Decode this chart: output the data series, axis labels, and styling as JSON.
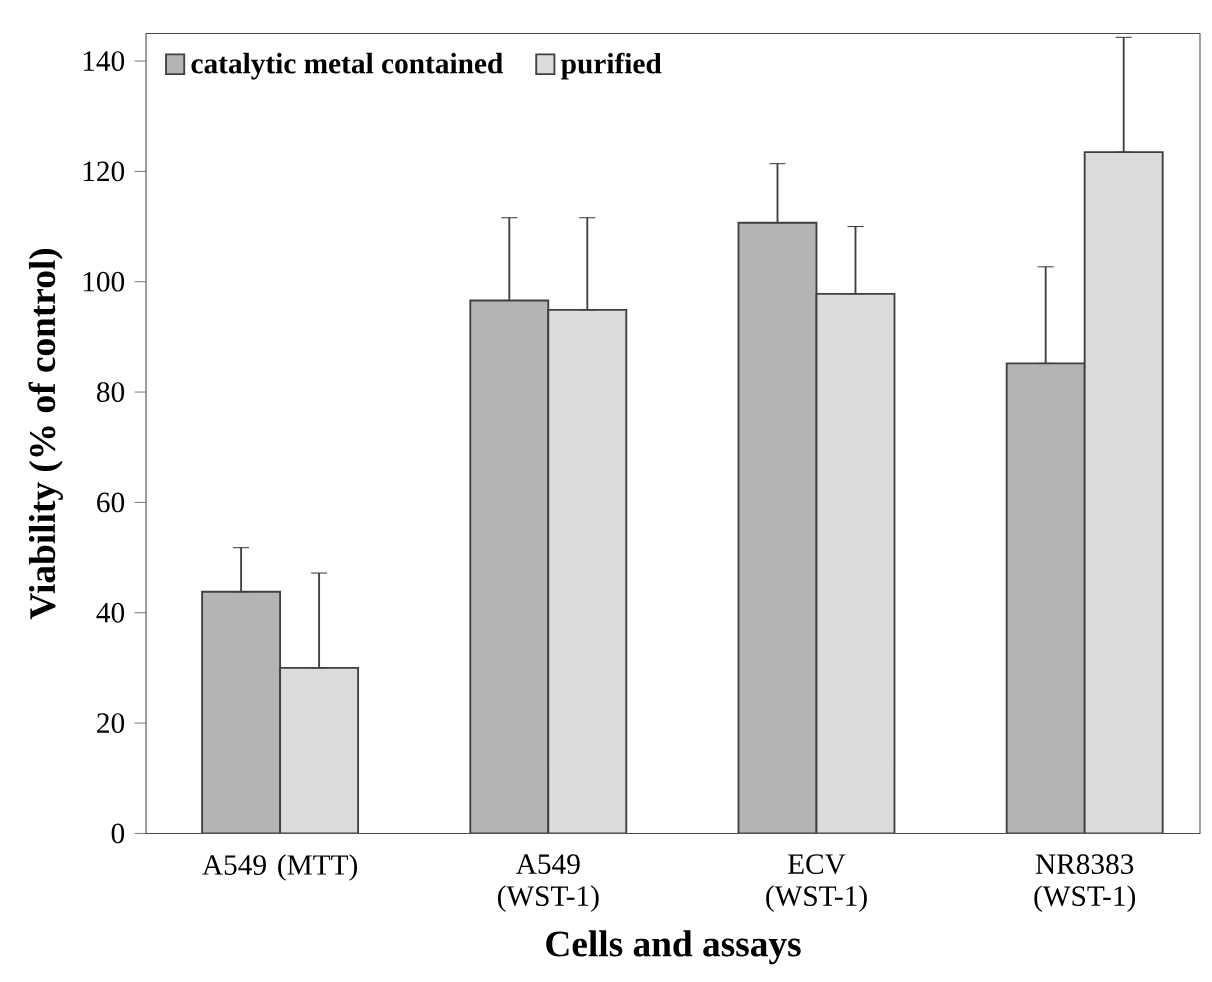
{
  "chart_data": {
    "type": "bar",
    "xlabel": "Cells and assays",
    "ylabel": "Viability (% of control)",
    "categories": [
      "A549 (MTT)",
      "A549 (WST-1)",
      "ECV (WST-1)",
      "NR8383 (WST-1)"
    ],
    "series": [
      {
        "name": "catalytic metal contained",
        "color": "#b4b4b4",
        "values": [
          43.8,
          96.6,
          110.7,
          85.2
        ],
        "errors": [
          [
            43.8,
            51.8
          ],
          [
            96.6,
            111.6
          ],
          [
            110.7,
            121.4
          ],
          [
            85.2,
            102.7
          ]
        ]
      },
      {
        "name": "purified",
        "color": "#dcdcdc",
        "values": [
          30.0,
          94.9,
          97.8,
          123.5
        ],
        "errors": [
          [
            30.0,
            47.2
          ],
          [
            94.9,
            111.6
          ],
          [
            97.8,
            110.0
          ],
          [
            123.5,
            144.3
          ]
        ]
      }
    ],
    "ylim": [
      0,
      145
    ],
    "yticks": [
      0,
      20,
      40,
      60,
      80,
      100,
      120,
      140
    ],
    "legend": "top left"
  }
}
